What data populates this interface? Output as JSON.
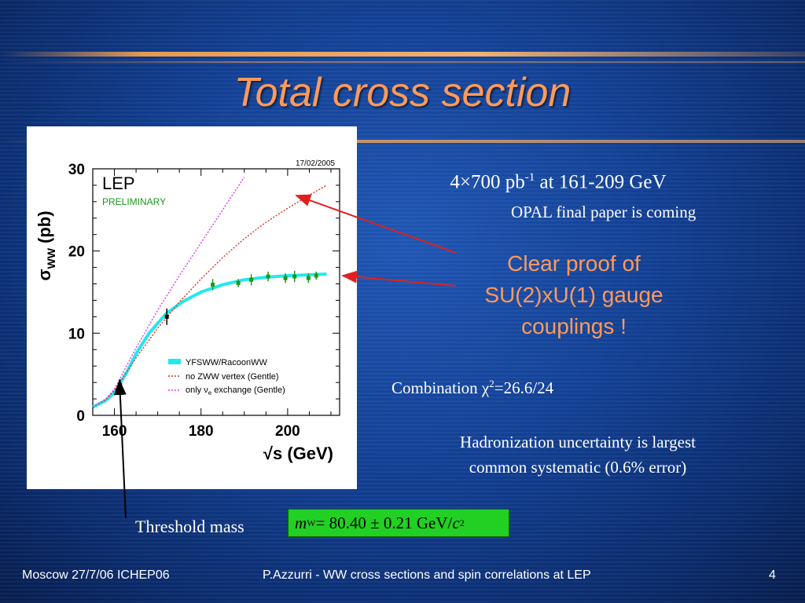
{
  "slide": {
    "title": "Total cross section",
    "luminosity_main": "4×700 pb",
    "luminosity_sup": "-1",
    "luminosity_tail": " at 161-209 GeV",
    "opal_note": "OPAL final paper is coming",
    "proof_line1": "Clear proof of",
    "proof_line2": "SU(2)xU(1) gauge",
    "proof_line3": "couplings !",
    "combination_prefix": "Combination χ",
    "combination_sup": "2",
    "combination_value": "=26.6/24",
    "hadron_line1": "Hadronization uncertainty is largest",
    "hadron_line2": "common systematic (0.6% error)",
    "threshold_label": "Threshold mass",
    "formula": {
      "m": "m",
      "sub": "W",
      "equals": " = 80.40 ± 0.21 GeV/",
      "c": "c",
      "sup": "2"
    }
  },
  "footer": {
    "left": "Moscow  27/7/06 ICHEP06",
    "center": "P.Azzurri - WW cross sections and spin correlations at LEP",
    "page": "4"
  },
  "chart_data": {
    "type": "line",
    "date_stamp": "17/02/2005",
    "experiment": "LEP",
    "status": "PRELIMINARY",
    "ylabel_main": "σ",
    "ylabel_sub": "WW",
    "ylabel_unit": " (pb)",
    "xlabel": "√s (GeV)",
    "xlim": [
      155,
      212
    ],
    "ylim": [
      0,
      30
    ],
    "xticks": [
      160,
      180,
      200
    ],
    "yticks": [
      0,
      10,
      20,
      30
    ],
    "legend": [
      {
        "label": "YFSWW/RacoonWW",
        "style": "band",
        "color": "#22e8ee"
      },
      {
        "label": "no ZWW vertex (Gentle)",
        "style": "dotted",
        "color": "#e03020"
      },
      {
        "label_pre": "only ν",
        "label_sub": "e",
        "label_post": " exchange (Gentle)",
        "style": "dotted",
        "color": "#e03ae8"
      }
    ],
    "series": [
      {
        "name": "YFSWW/RacoonWW",
        "color": "#22e8ee",
        "x": [
          155,
          158,
          160,
          161,
          163,
          165,
          168,
          172,
          176,
          180,
          185,
          190,
          195,
          200,
          205,
          209
        ],
        "y": [
          1.0,
          1.8,
          2.8,
          3.6,
          5.4,
          7.5,
          10.0,
          12.4,
          13.9,
          15.0,
          15.9,
          16.5,
          16.8,
          17.0,
          17.1,
          17.2
        ]
      },
      {
        "name": "no ZWW vertex (Gentle)",
        "color": "#e03020",
        "x": [
          155,
          158,
          160,
          162,
          165,
          170,
          175,
          180,
          185,
          190,
          195,
          200,
          205,
          209
        ],
        "y": [
          1.0,
          1.9,
          3.0,
          4.6,
          7.0,
          10.6,
          13.8,
          16.6,
          19.2,
          21.5,
          23.5,
          25.2,
          26.8,
          28.0
        ]
      },
      {
        "name": "only ν_e exchange (Gentle)",
        "color": "#e03ae8",
        "x": [
          155,
          158,
          160,
          162,
          165,
          170,
          175,
          180,
          185,
          190
        ],
        "y": [
          1.0,
          2.0,
          3.2,
          5.2,
          8.2,
          12.8,
          17.0,
          21.0,
          25.0,
          29.0
        ]
      }
    ],
    "points": {
      "name": "LEP data",
      "x": [
        161.3,
        172.1,
        182.7,
        188.6,
        191.6,
        195.5,
        199.5,
        201.6,
        204.8,
        206.6
      ],
      "y": [
        3.7,
        12.0,
        15.9,
        16.1,
        16.5,
        16.9,
        16.7,
        16.9,
        16.7,
        17.0
      ],
      "err": [
        0.4,
        0.7,
        0.4,
        0.2,
        0.4,
        0.3,
        0.3,
        0.4,
        0.3,
        0.2
      ],
      "colors": [
        "#000000",
        "#000000",
        "#1a9a1a",
        "#1a9a1a",
        "#1a9a1a",
        "#1a9a1a",
        "#1a9a1a",
        "#1a9a1a",
        "#1a9a1a",
        "#1a9a1a"
      ]
    }
  }
}
